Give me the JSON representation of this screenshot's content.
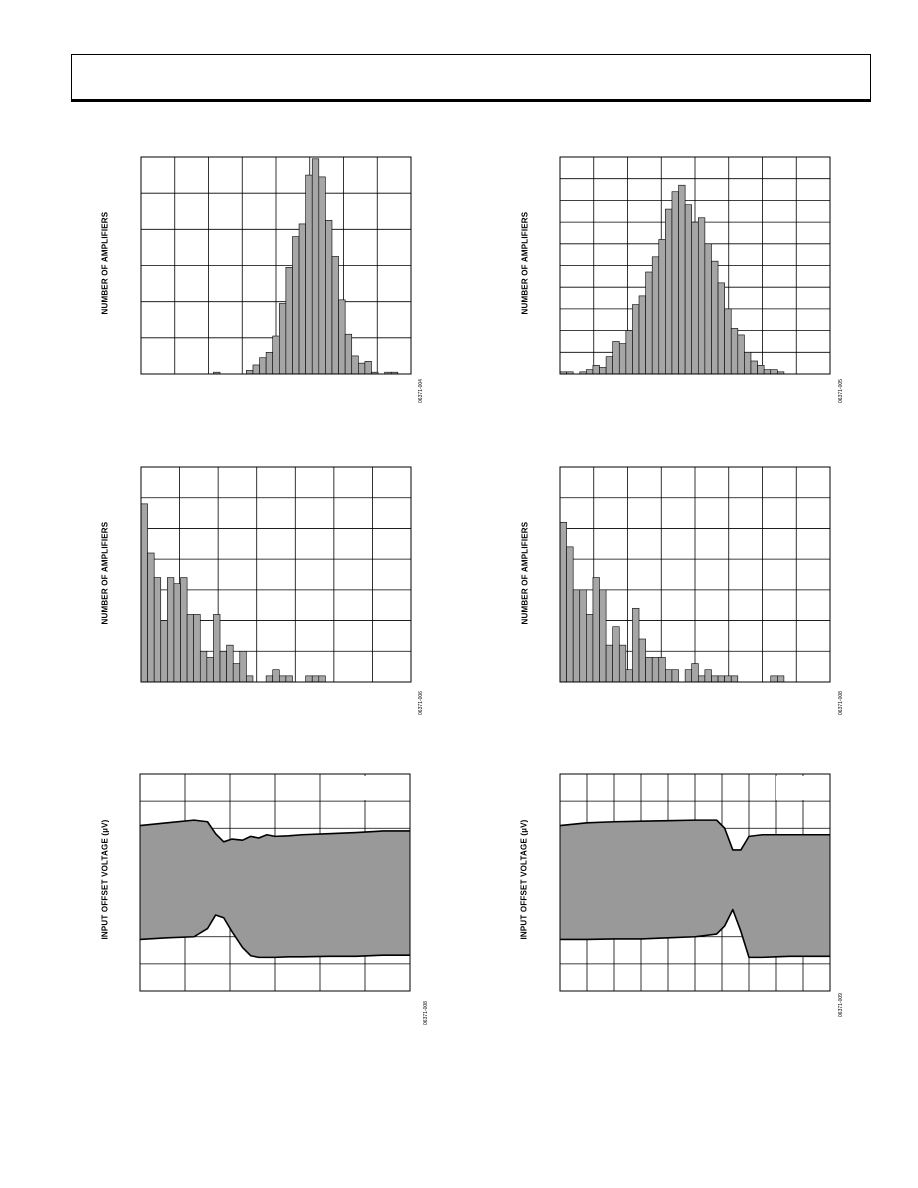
{
  "header": {},
  "chart_data": [
    {
      "id": "c1",
      "type": "bar",
      "ylabel": "NUMBER OF AMPLIFIERS",
      "code": "06371-004",
      "n_bins": 41,
      "values": [
        0,
        0,
        0,
        0,
        0,
        0,
        0,
        0,
        0,
        0,
        0,
        0.5,
        0,
        0,
        0,
        0,
        1,
        2.5,
        4.5,
        6,
        10.5,
        19.5,
        29.5,
        38,
        41.5,
        55,
        59.5,
        54.5,
        42.5,
        32.5,
        20.5,
        11,
        5,
        3,
        3.5,
        0.5,
        0,
        0.5,
        0.5,
        0,
        0
      ],
      "ymax": 60,
      "yticks": 6,
      "xticks": 8
    },
    {
      "id": "c2",
      "type": "bar",
      "ylabel": "NUMBER OF AMPLIFIERS",
      "code": "06371-005",
      "n_bins": 41,
      "values": [
        0.5,
        0.5,
        0,
        0.5,
        1,
        2,
        1.5,
        4,
        7.5,
        7,
        10,
        16,
        18,
        23.5,
        27,
        31,
        38,
        42,
        43.5,
        39,
        35,
        36,
        30,
        26,
        21,
        15,
        10.5,
        9,
        5,
        3,
        2,
        1,
        1,
        0.5,
        0,
        0,
        0,
        0,
        0,
        0,
        0
      ],
      "ymax": 50,
      "yticks": 10,
      "xticks": 8
    },
    {
      "id": "c3",
      "type": "bar",
      "ylabel": "NUMBER OF AMPLIFIERS",
      "code": "06371-006",
      "n_bins": 41,
      "values": [
        29,
        21,
        17,
        10,
        17,
        16,
        17,
        11,
        11,
        5,
        4,
        11,
        5,
        6,
        3,
        5,
        1,
        0,
        0,
        1,
        2,
        1,
        1,
        0,
        0,
        1,
        1,
        1,
        0,
        0,
        0,
        0,
        0,
        0,
        0,
        0,
        0,
        0,
        0,
        0,
        0
      ],
      "ymax": 35,
      "yticks": 7,
      "xticks": 7
    },
    {
      "id": "c4",
      "type": "bar",
      "ylabel": "NUMBER OF AMPLIFIERS",
      "code": "06371-008",
      "n_bins": 41,
      "values": [
        26,
        22,
        15,
        15,
        11,
        17,
        15,
        6,
        9,
        6,
        2,
        12,
        7,
        4,
        4,
        4,
        2,
        2,
        0,
        2,
        3,
        1,
        2,
        1,
        1,
        1,
        1,
        0,
        0,
        0,
        0,
        0,
        1,
        1,
        0,
        0,
        0,
        0,
        0,
        0,
        0
      ],
      "ymax": 35,
      "yticks": 7,
      "xticks": 8
    },
    {
      "id": "c5",
      "type": "area",
      "ylabel": "INPUT OFFSET VOLTAGE (µV)",
      "code": "06371-008",
      "x": [
        0,
        0.1,
        0.2,
        0.25,
        0.28,
        0.31,
        0.34,
        0.38,
        0.41,
        0.44,
        0.47,
        0.5,
        0.55,
        0.6,
        0.7,
        0.8,
        0.9,
        1.0
      ],
      "upper": [
        3.05,
        3.1,
        3.15,
        3.12,
        2.9,
        2.75,
        2.8,
        2.78,
        2.85,
        2.82,
        2.88,
        2.85,
        2.86,
        2.88,
        2.9,
        2.92,
        2.95,
        2.95
      ],
      "lower": [
        0.95,
        0.98,
        1.0,
        1.15,
        1.4,
        1.35,
        1.1,
        0.8,
        0.65,
        0.62,
        0.62,
        0.62,
        0.63,
        0.63,
        0.64,
        0.64,
        0.66,
        0.66
      ],
      "ymax": 4,
      "yticks": 8,
      "xticks": 6,
      "inset_x": 0.8,
      "inset_y": 0.88
    },
    {
      "id": "c6",
      "type": "area",
      "ylabel": "INPUT OFFSET VOLTAGE (µV)",
      "code": "06371-009",
      "x": [
        0,
        0.1,
        0.2,
        0.3,
        0.4,
        0.5,
        0.58,
        0.61,
        0.64,
        0.67,
        0.7,
        0.75,
        0.8,
        0.85,
        0.9,
        1.0
      ],
      "upper": [
        3.05,
        3.1,
        3.12,
        3.13,
        3.14,
        3.15,
        3.15,
        3.0,
        2.6,
        2.6,
        2.85,
        2.88,
        2.88,
        2.88,
        2.88,
        2.88
      ],
      "lower": [
        0.95,
        0.95,
        0.96,
        0.96,
        0.98,
        1.0,
        1.05,
        1.2,
        1.5,
        1.1,
        0.62,
        0.62,
        0.63,
        0.64,
        0.64,
        0.64
      ],
      "ymax": 4,
      "yticks": 8,
      "xticks": 10,
      "inset_x": 0.8,
      "inset_y": 0.88
    }
  ]
}
